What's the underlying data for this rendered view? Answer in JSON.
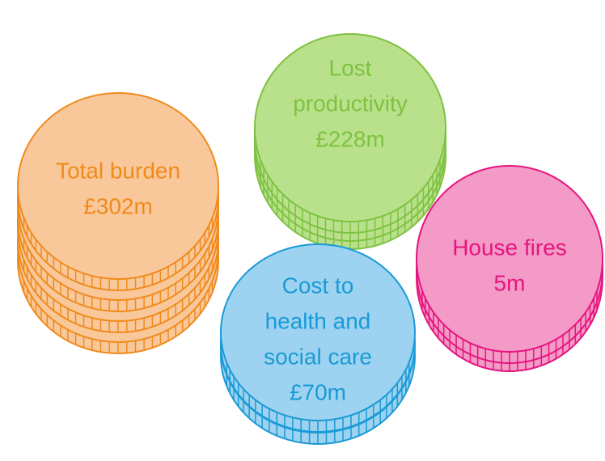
{
  "coins": [
    {
      "lines": [
        "Total burden",
        "£302m"
      ],
      "fill": "#f9c89a",
      "color": "#f08a1c"
    },
    {
      "lines": [
        "Lost",
        "productivity",
        "£228m"
      ],
      "fill": "#b9e08a",
      "color": "#7ec242"
    },
    {
      "lines": [
        "Cost to",
        "health and",
        "social care",
        "£70m"
      ],
      "fill": "#9dd3f0",
      "color": "#1a9ad6"
    },
    {
      "lines": [
        "House fires",
        "5m"
      ],
      "fill": "#f49ac6",
      "color": "#e5157f"
    }
  ]
}
